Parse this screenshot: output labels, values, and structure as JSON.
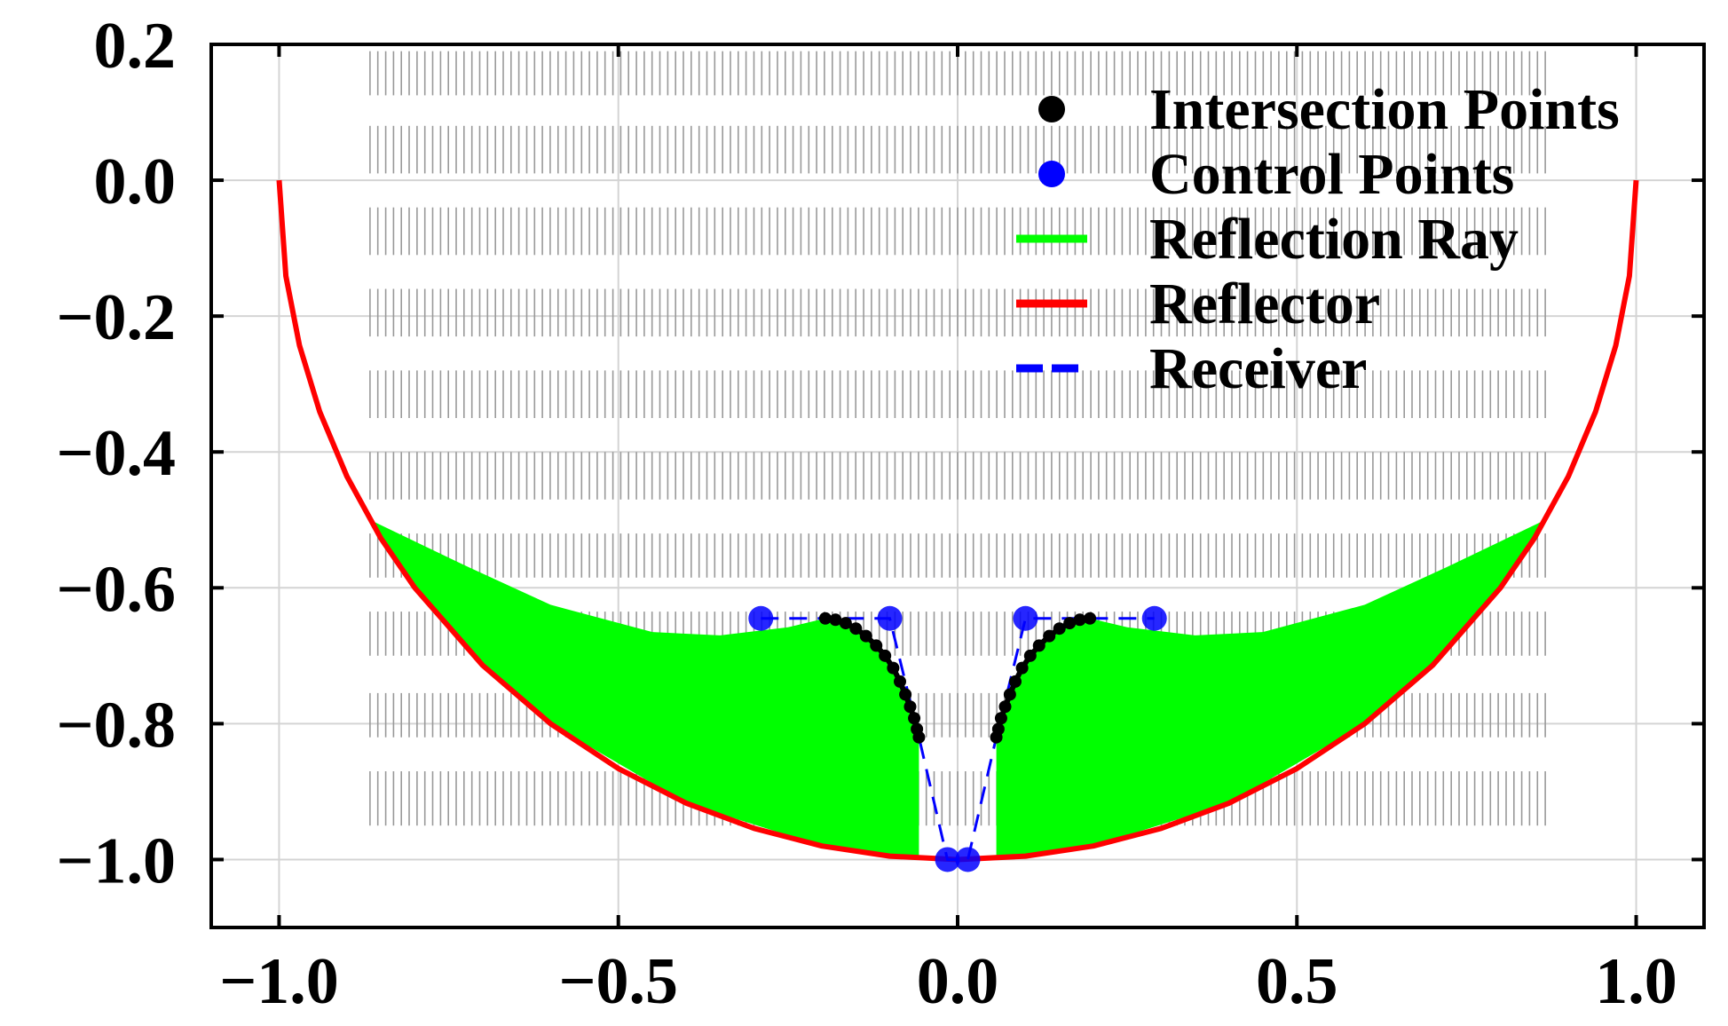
{
  "chart_data": {
    "type": "line",
    "title": "",
    "xlabel": "",
    "ylabel": "",
    "xlim": [
      -1.1,
      1.1
    ],
    "ylim": [
      -1.1,
      0.2
    ],
    "grid": true,
    "legend_position": "top-right",
    "x_ticks": [
      {
        "value": -1.0,
        "label": "−1.0"
      },
      {
        "value": -0.5,
        "label": "−0.5"
      },
      {
        "value": 0.0,
        "label": "0.0"
      },
      {
        "value": 0.5,
        "label": "0.5"
      },
      {
        "value": 1.0,
        "label": "1.0"
      }
    ],
    "y_ticks": [
      {
        "value": 0.2,
        "label": "0.2"
      },
      {
        "value": 0.0,
        "label": "0.0"
      },
      {
        "value": -0.2,
        "label": "−0.2"
      },
      {
        "value": -0.4,
        "label": "−0.4"
      },
      {
        "value": -0.6,
        "label": "−0.6"
      },
      {
        "value": -0.8,
        "label": "−0.8"
      },
      {
        "value": -1.0,
        "label": "−1.0"
      }
    ],
    "legend": [
      {
        "key": "intersection",
        "label": "Intersection Points",
        "marker": "dot",
        "color": "#000000"
      },
      {
        "key": "control",
        "label": "Control Points",
        "marker": "dot",
        "color": "#0000ff"
      },
      {
        "key": "ray",
        "label": "Reflection Ray",
        "marker": "line",
        "color": "#00ff00"
      },
      {
        "key": "reflector",
        "label": "Reflector",
        "marker": "line",
        "color": "#ff0000"
      },
      {
        "key": "receiver",
        "label": "Receiver",
        "marker": "dash",
        "color": "#0000ff"
      }
    ],
    "series": [
      {
        "name": "Reflector",
        "color": "#ff0000",
        "style": "solid",
        "x": [
          -1.0,
          -0.99,
          -0.97,
          -0.94,
          -0.9,
          -0.85,
          -0.8,
          -0.7,
          -0.6,
          -0.5,
          -0.4,
          -0.3,
          -0.2,
          -0.1,
          0.0,
          0.1,
          0.2,
          0.3,
          0.4,
          0.5,
          0.6,
          0.7,
          0.8,
          0.85,
          0.9,
          0.94,
          0.97,
          0.99,
          1.0
        ],
        "y": [
          0.0,
          -0.141,
          -0.243,
          -0.341,
          -0.436,
          -0.527,
          -0.6,
          -0.714,
          -0.8,
          -0.866,
          -0.917,
          -0.954,
          -0.98,
          -0.995,
          -1.0,
          -0.995,
          -0.98,
          -0.954,
          -0.917,
          -0.866,
          -0.8,
          -0.714,
          -0.6,
          -0.527,
          -0.436,
          -0.341,
          -0.243,
          -0.141,
          0.0
        ]
      },
      {
        "name": "Receiver",
        "color": "#0000ff",
        "style": "dashed",
        "x": [
          -0.29,
          -0.1,
          -0.057,
          -0.015,
          0.015,
          0.057,
          0.1,
          0.29
        ],
        "y": [
          -0.645,
          -0.645,
          -0.82,
          -1.0,
          -1.0,
          -0.82,
          -0.645,
          -0.645
        ]
      },
      {
        "name": "Control Points",
        "color": "#0000ff",
        "style": "markers",
        "x": [
          -0.29,
          -0.1,
          -0.015,
          0.015,
          0.1,
          0.29
        ],
        "y": [
          -0.645,
          -0.645,
          -1.0,
          -1.0,
          -0.645,
          -0.645
        ]
      },
      {
        "name": "Intersection Points (left)",
        "color": "#000000",
        "style": "markers-line",
        "x": [
          -0.195,
          -0.18,
          -0.165,
          -0.15,
          -0.135,
          -0.12,
          -0.107,
          -0.095,
          -0.085,
          -0.077,
          -0.07,
          -0.064,
          -0.06,
          -0.057
        ],
        "y": [
          -0.645,
          -0.647,
          -0.652,
          -0.66,
          -0.671,
          -0.685,
          -0.7,
          -0.718,
          -0.738,
          -0.757,
          -0.775,
          -0.792,
          -0.808,
          -0.82
        ]
      },
      {
        "name": "Intersection Points (right)",
        "color": "#000000",
        "style": "markers-line",
        "x": [
          0.057,
          0.06,
          0.064,
          0.07,
          0.077,
          0.085,
          0.095,
          0.107,
          0.12,
          0.135,
          0.15,
          0.165,
          0.18,
          0.195
        ],
        "y": [
          -0.82,
          -0.808,
          -0.792,
          -0.775,
          -0.757,
          -0.738,
          -0.718,
          -0.7,
          -0.685,
          -0.671,
          -0.66,
          -0.652,
          -0.647,
          -0.645
        ]
      },
      {
        "name": "Reflection Ray (left envelope)",
        "color": "#00ff00",
        "style": "fill",
        "x": [
          -0.866,
          -0.72,
          -0.6,
          -0.45,
          -0.35,
          -0.25,
          -0.195,
          -0.15,
          -0.12,
          -0.095,
          -0.077,
          -0.064,
          -0.057,
          -0.057,
          -0.2,
          -0.4,
          -0.6,
          -0.7,
          -0.8,
          -0.866
        ],
        "y": [
          -0.5,
          -0.57,
          -0.625,
          -0.665,
          -0.67,
          -0.658,
          -0.645,
          -0.66,
          -0.685,
          -0.718,
          -0.757,
          -0.792,
          -0.82,
          -0.997,
          -0.98,
          -0.917,
          -0.8,
          -0.714,
          -0.6,
          -0.5
        ]
      },
      {
        "name": "Reflection Ray (right envelope)",
        "color": "#00ff00",
        "style": "fill",
        "x": [
          0.866,
          0.72,
          0.6,
          0.45,
          0.35,
          0.25,
          0.195,
          0.15,
          0.12,
          0.095,
          0.077,
          0.064,
          0.057,
          0.057,
          0.2,
          0.4,
          0.6,
          0.7,
          0.8,
          0.866
        ],
        "y": [
          -0.5,
          -0.57,
          -0.625,
          -0.665,
          -0.67,
          -0.658,
          -0.645,
          -0.66,
          -0.685,
          -0.718,
          -0.757,
          -0.792,
          -0.82,
          -0.997,
          -0.98,
          -0.917,
          -0.8,
          -0.714,
          -0.6,
          -0.5
        ]
      },
      {
        "name": "Incident Rays",
        "color": "#999999",
        "style": "vertical-hatch",
        "x_range": [
          -0.866,
          0.866
        ],
        "y_top": 0.2,
        "bands": [
          [
            0.19,
            0.125
          ],
          [
            0.08,
            0.01
          ],
          [
            -0.04,
            -0.11
          ],
          [
            -0.16,
            -0.23
          ],
          [
            -0.28,
            -0.35
          ],
          [
            -0.4,
            -0.47
          ],
          [
            -0.52,
            -0.585
          ],
          [
            -0.635,
            -0.7
          ],
          [
            -0.755,
            -0.82
          ],
          [
            -0.87,
            -0.95
          ]
        ]
      }
    ]
  }
}
